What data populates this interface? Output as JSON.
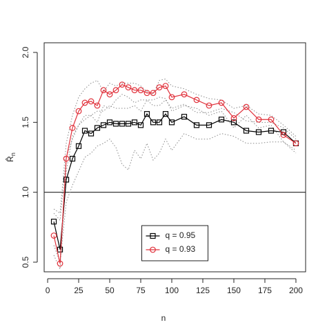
{
  "chart_data": {
    "type": "line",
    "xlabel": "n",
    "ylabel": "R̂",
    "ylabel_sub": "n",
    "x": [
      5,
      10,
      15,
      20,
      25,
      30,
      35,
      40,
      45,
      50,
      55,
      60,
      65,
      70,
      75,
      80,
      85,
      90,
      95,
      100,
      110,
      120,
      130,
      140,
      150,
      160,
      170,
      180,
      190,
      200
    ],
    "xlim": [
      -2.8,
      207.8
    ],
    "xticks": [
      0,
      25,
      50,
      75,
      100,
      125,
      150,
      175,
      200
    ],
    "ylim": [
      0.431,
      2.069
    ],
    "yticks": [
      {
        "value": 0.5,
        "label": "0.5"
      },
      {
        "value": 1.0,
        "label": "1.0"
      },
      {
        "value": 1.5,
        "label": "1.5"
      },
      {
        "value": 2.0,
        "label": "2.0"
      }
    ],
    "hline": 1.0,
    "legend": "bottom",
    "series": [
      {
        "name": "q = 0.95",
        "color": "#000000",
        "marker": "square",
        "values": [
          0.79,
          0.59,
          1.09,
          1.24,
          1.33,
          1.44,
          1.42,
          1.46,
          1.48,
          1.5,
          1.49,
          1.49,
          1.49,
          1.5,
          1.48,
          1.56,
          1.5,
          1.5,
          1.56,
          1.5,
          1.54,
          1.48,
          1.48,
          1.52,
          1.5,
          1.44,
          1.43,
          1.44,
          1.43,
          1.35
        ]
      },
      {
        "name": "q = 0.93",
        "color": "#e0303a",
        "marker": "circle",
        "values": [
          0.69,
          0.49,
          1.24,
          1.46,
          1.58,
          1.64,
          1.65,
          1.62,
          1.73,
          1.7,
          1.73,
          1.77,
          1.75,
          1.73,
          1.73,
          1.71,
          1.71,
          1.75,
          1.76,
          1.68,
          1.7,
          1.66,
          1.62,
          1.64,
          1.53,
          1.61,
          1.52,
          1.52,
          1.41,
          1.35
        ]
      },
      {
        "color": "#888888",
        "dash": "dotted",
        "values": [
          0.88,
          0.85,
          1.35,
          1.55,
          1.68,
          1.74,
          1.78,
          1.8,
          1.72,
          1.78,
          1.76,
          1.78,
          1.78,
          1.78,
          1.76,
          1.72,
          1.7,
          1.8,
          1.81,
          1.76,
          1.74,
          1.7,
          1.67,
          1.66,
          1.6,
          1.62,
          1.56,
          1.55,
          1.48,
          1.4
        ]
      },
      {
        "color": "#888888",
        "dash": "dotted",
        "values": [
          0.55,
          0.45,
          1.15,
          1.4,
          1.48,
          1.55,
          1.55,
          1.5,
          1.62,
          1.6,
          1.66,
          1.7,
          1.68,
          1.64,
          1.66,
          1.66,
          1.66,
          1.68,
          1.67,
          1.58,
          1.62,
          1.6,
          1.55,
          1.58,
          1.46,
          1.55,
          1.46,
          1.48,
          1.36,
          1.3
        ]
      },
      {
        "color": "#888888",
        "dash": "dotted",
        "values": [
          0.85,
          0.8,
          1.25,
          1.38,
          1.48,
          1.52,
          1.55,
          1.58,
          1.58,
          1.62,
          1.6,
          1.6,
          1.6,
          1.62,
          1.58,
          1.66,
          1.62,
          1.62,
          1.66,
          1.6,
          1.63,
          1.57,
          1.57,
          1.6,
          1.57,
          1.51,
          1.5,
          1.5,
          1.46,
          1.38
        ]
      },
      {
        "color": "#888888",
        "dash": "dotted",
        "values": [
          0.62,
          0.5,
          0.93,
          1.05,
          1.15,
          1.25,
          1.28,
          1.33,
          1.35,
          1.38,
          1.32,
          1.2,
          1.16,
          1.3,
          1.24,
          1.35,
          1.23,
          1.28,
          1.38,
          1.3,
          1.42,
          1.38,
          1.38,
          1.42,
          1.4,
          1.35,
          1.35,
          1.36,
          1.36,
          1.28
        ]
      }
    ]
  }
}
